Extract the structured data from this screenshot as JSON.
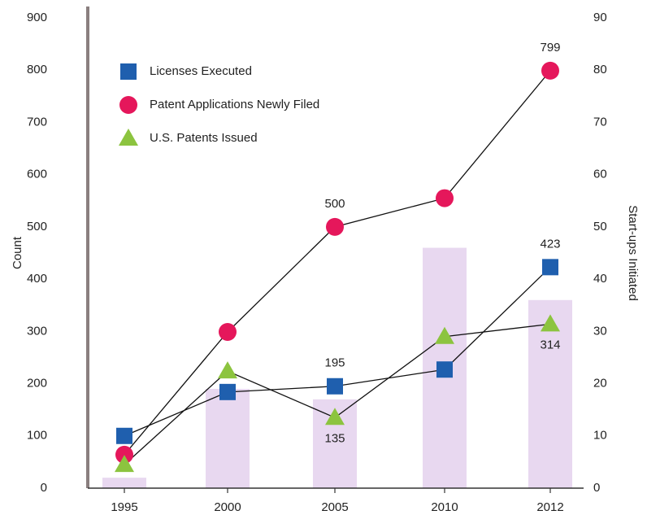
{
  "chart_data": {
    "type": "combo",
    "ylabel": "Count",
    "y2label": "Start-ups Initiated",
    "categories": [
      "1995",
      "2000",
      "2005",
      "2010",
      "2012"
    ],
    "series": [
      {
        "type": "bar",
        "axis": "y2",
        "color": "#e8d8f0",
        "values": [
          2,
          19,
          17,
          46,
          36
        ]
      },
      {
        "type": "line",
        "name": "Licenses Executed",
        "marker": "square",
        "color": "#1f5fae",
        "values": [
          100,
          184,
          195,
          227,
          423
        ],
        "value_labels": [
          null,
          null,
          "195",
          null,
          "423"
        ],
        "label_position": "above"
      },
      {
        "type": "line",
        "name": "Patent Applications Newly Filed",
        "marker": "circle",
        "color": "#e5175b",
        "values": [
          64,
          299,
          500,
          555,
          799
        ],
        "value_labels": [
          null,
          null,
          "500",
          null,
          "799"
        ],
        "label_position": "above"
      },
      {
        "type": "line",
        "name": "U.S. Patents Issued",
        "marker": "triangle",
        "color": "#8cc43f",
        "values": [
          45,
          224,
          135,
          290,
          314
        ],
        "value_labels": [
          null,
          null,
          "135",
          null,
          "314"
        ],
        "label_position": "below"
      }
    ],
    "ylim": [
      0,
      900
    ],
    "yticks": [
      0,
      100,
      200,
      300,
      400,
      500,
      600,
      700,
      800,
      900
    ],
    "y2lim": [
      0,
      90
    ],
    "y2ticks": [
      0,
      10,
      20,
      30,
      40,
      50,
      60,
      70,
      80,
      90
    ],
    "legend": "top-left",
    "line_color": "#111111"
  }
}
